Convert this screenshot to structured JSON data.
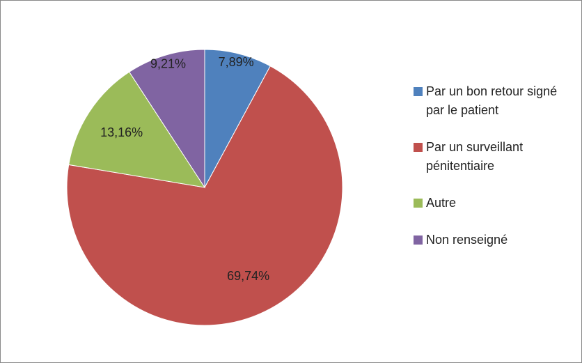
{
  "chart_data": {
    "type": "pie",
    "categories": [
      "Par un bon retour signé par le patient",
      "Par un surveillant pénitentiaire",
      "Autre",
      "Non renseigné"
    ],
    "values": [
      7.89,
      69.74,
      13.16,
      9.21
    ],
    "value_labels": [
      "7,89%",
      "69,74%",
      "13,16%",
      "9,21%"
    ],
    "colors": [
      "#4f81bd",
      "#c0504d",
      "#9bbb59",
      "#8064a2"
    ],
    "legend": "right"
  }
}
